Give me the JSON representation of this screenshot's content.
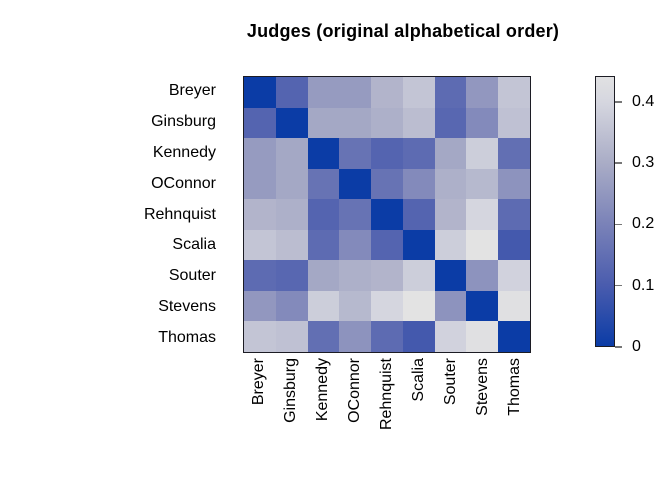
{
  "title": "Judges (original alphabetical order)",
  "chart_data": {
    "type": "heatmap",
    "title": "Judges (original alphabetical order)",
    "rows": [
      "Breyer",
      "Ginsburg",
      "Kennedy",
      "OConnor",
      "Rehnquist",
      "Scalia",
      "Souter",
      "Stevens",
      "Thomas"
    ],
    "cols": [
      "Breyer",
      "Ginsburg",
      "Kennedy",
      "OConnor",
      "Rehnquist",
      "Scalia",
      "Souter",
      "Stevens",
      "Thomas"
    ],
    "matrix": [
      [
        0.0,
        0.12,
        0.26,
        0.26,
        0.32,
        0.36,
        0.14,
        0.25,
        0.36
      ],
      [
        0.12,
        0.0,
        0.29,
        0.29,
        0.31,
        0.34,
        0.13,
        0.22,
        0.35
      ],
      [
        0.26,
        0.29,
        0.0,
        0.16,
        0.12,
        0.14,
        0.29,
        0.38,
        0.15
      ],
      [
        0.26,
        0.29,
        0.16,
        0.0,
        0.16,
        0.22,
        0.31,
        0.33,
        0.24
      ],
      [
        0.32,
        0.31,
        0.12,
        0.16,
        0.0,
        0.12,
        0.32,
        0.4,
        0.14
      ],
      [
        0.36,
        0.34,
        0.14,
        0.22,
        0.12,
        0.0,
        0.38,
        0.45,
        0.09
      ],
      [
        0.14,
        0.13,
        0.29,
        0.31,
        0.32,
        0.38,
        0.0,
        0.24,
        0.39
      ],
      [
        0.25,
        0.22,
        0.38,
        0.33,
        0.4,
        0.45,
        0.24,
        0.0,
        0.44
      ],
      [
        0.36,
        0.35,
        0.15,
        0.24,
        0.14,
        0.09,
        0.39,
        0.44,
        0.0
      ]
    ],
    "value_range": [
      0,
      0.45
    ],
    "x_tick_rotation": 90,
    "grid_lines": false,
    "frame_color": "#1c1c24",
    "color_scale": {
      "stops": [
        {
          "value": 0.0,
          "color": "#0B3CA6"
        },
        {
          "value": 0.1,
          "color": "#4A5CAE"
        },
        {
          "value": 0.2,
          "color": "#7A82B8"
        },
        {
          "value": 0.3,
          "color": "#A9ACC6"
        },
        {
          "value": 0.4,
          "color": "#D5D6DF"
        },
        {
          "value": 0.45,
          "color": "#E3E3E3"
        }
      ]
    },
    "legend": {
      "position": "right",
      "ticks": [
        0,
        0.1,
        0.2,
        0.3,
        0.4
      ],
      "tick_labels": [
        "0",
        "0.1",
        "0.2",
        "0.3",
        "0.4"
      ],
      "tick_color": "#777777"
    }
  }
}
